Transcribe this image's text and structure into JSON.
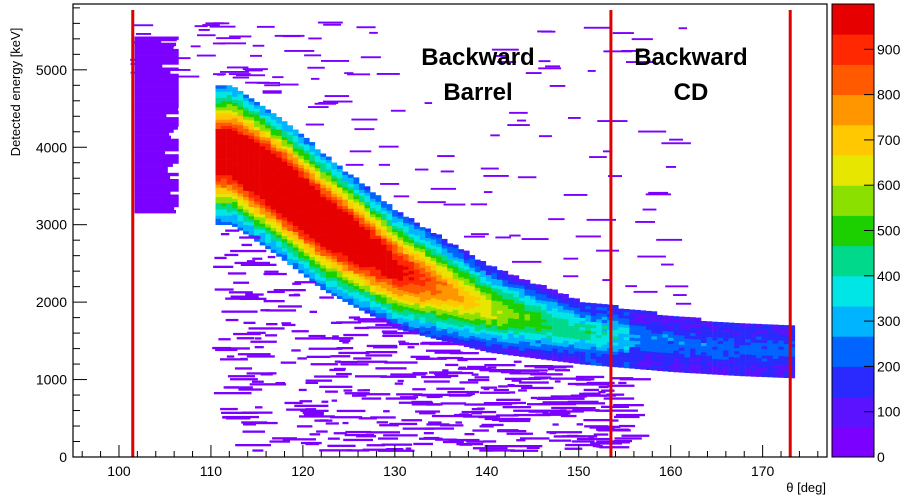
{
  "chart_data": {
    "type": "heatmap",
    "xlabel": "θ [deg]",
    "ylabel": "Detected energy [keV]",
    "xlim": [
      95,
      177
    ],
    "ylim": [
      0,
      5850
    ],
    "x_ticks": [
      100,
      110,
      120,
      130,
      140,
      150,
      160,
      170
    ],
    "x_tick_labels": [
      "100",
      "110",
      "120",
      "130",
      "140",
      "150",
      "160",
      "170"
    ],
    "y_ticks": [
      0,
      1000,
      2000,
      3000,
      4000,
      5000
    ],
    "y_tick_labels": [
      "0",
      "1000",
      "2000",
      "3000",
      "4000",
      "5000"
    ],
    "zlim": [
      0,
      1000
    ],
    "colorbar_ticks": [
      0,
      100,
      200,
      300,
      400,
      500,
      600,
      700,
      800,
      900
    ],
    "colorbar_tick_labels": [
      "0",
      "100",
      "200",
      "300",
      "400",
      "500",
      "600",
      "700",
      "800",
      "900"
    ],
    "colorbar_colors": [
      "#7b00ff",
      "#5a12ff",
      "#2a2aff",
      "#0064ff",
      "#00b4ff",
      "#00e6e6",
      "#00d98c",
      "#1cd000",
      "#8ce000",
      "#e6e600",
      "#ffc800",
      "#ff9600",
      "#ff5a00",
      "#ff2800",
      "#e60000"
    ],
    "band": {
      "description_points": [
        {
          "theta": 112,
          "e_high": 4800,
          "e_low": 3000
        },
        {
          "theta": 117,
          "e_high": 4400,
          "e_low": 2600
        },
        {
          "theta": 122,
          "e_high": 3900,
          "e_low": 2150
        },
        {
          "theta": 130,
          "e_high": 3150,
          "e_low": 1650
        },
        {
          "theta": 140,
          "e_high": 2450,
          "e_low": 1350
        },
        {
          "theta": 150,
          "e_high": 2000,
          "e_low": 1200
        },
        {
          "theta": 160,
          "e_high": 1800,
          "e_low": 1100
        },
        {
          "theta": 167,
          "e_high": 1700,
          "e_low": 1050
        },
        {
          "theta": 173,
          "e_high": 1700,
          "e_low": 1020
        }
      ],
      "peak_theta": 118,
      "peak_energy": 3100,
      "peak_counts": 950
    },
    "low_block": {
      "theta_min": 101.5,
      "theta_max": 106.5,
      "e_min": 3150,
      "e_max": 5400
    },
    "regions": [
      {
        "label_line1": "Backward",
        "label_line2": "Barrel",
        "theta_min": 101.5,
        "theta_max": 153.5
      },
      {
        "label_line1": "Backward",
        "label_line2": "CD",
        "theta_min": 153.5,
        "theta_max": 173.0
      }
    ],
    "boundaries": [
      101.5,
      153.5,
      173.0
    ],
    "boundary_color": "#e00000",
    "grid": false,
    "legend": "none"
  }
}
